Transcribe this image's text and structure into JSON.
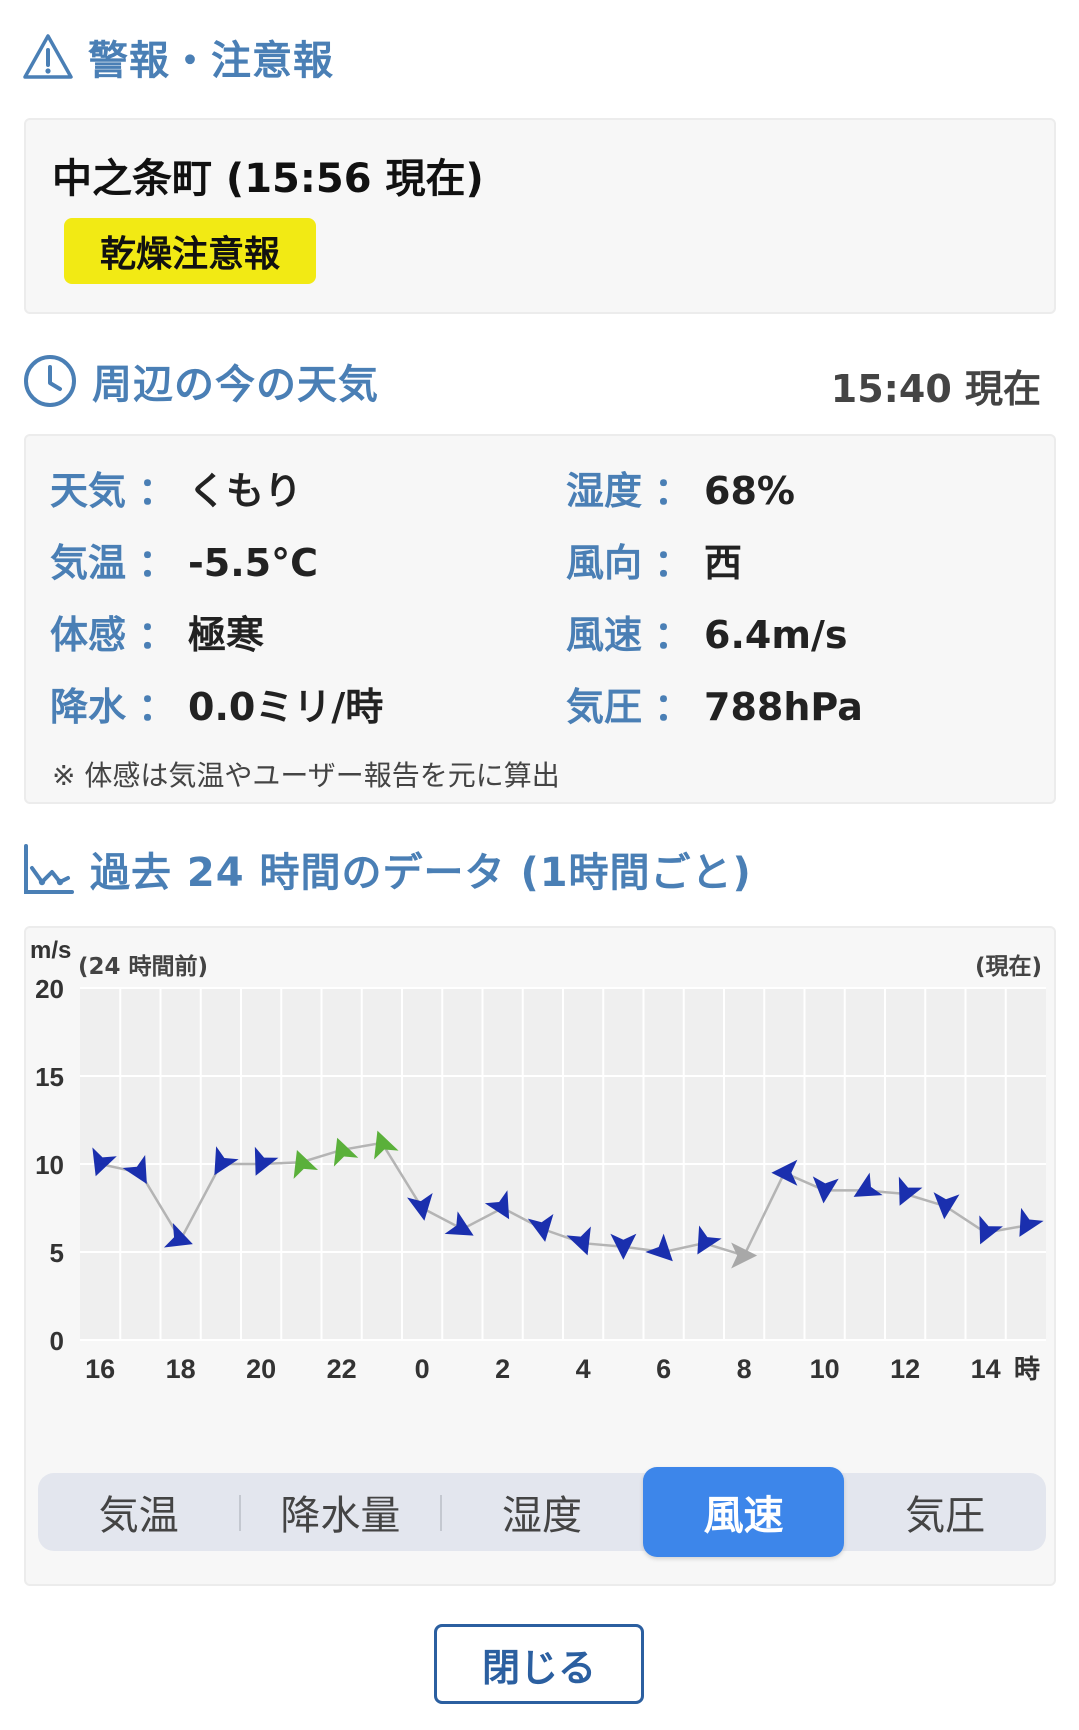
{
  "warning": {
    "section_title": "警報・注意報",
    "town": "中之条町 (15:56 現在)",
    "badge": "乾燥注意報"
  },
  "current": {
    "section_title": "周辺の今の天気",
    "time": "15:40 現在",
    "items": [
      {
        "label": "天気",
        "value": "くもり"
      },
      {
        "label": "湿度",
        "value": "68%"
      },
      {
        "label": "気温",
        "value": "-5.5°C"
      },
      {
        "label": "風向",
        "value": "西"
      },
      {
        "label": "体感",
        "value": "極寒"
      },
      {
        "label": "風速",
        "value": "6.4m/s"
      },
      {
        "label": "降水",
        "value": "0.0ミリ/時"
      },
      {
        "label": "気圧",
        "value": "788hPa"
      }
    ],
    "separator": "：",
    "note": "※ 体感は気温やユーザー報告を元に算出"
  },
  "history": {
    "section_title": "過去 24 時間のデータ (1時間ごと)",
    "tabs": [
      "気温",
      "降水量",
      "湿度",
      "風速",
      "気圧"
    ],
    "active_tab": "風速"
  },
  "chart_data": {
    "type": "line",
    "unit": "m/s",
    "left_note": "(24 時間前)",
    "right_note": "(現在)",
    "ylim": [
      0,
      20
    ],
    "y_ticks": [
      "0",
      "5",
      "10",
      "15",
      "20"
    ],
    "x_tick_labels": [
      "16",
      "18",
      "20",
      "22",
      "0",
      "2",
      "4",
      "6",
      "8",
      "10",
      "12",
      "14"
    ],
    "x_unit": "時",
    "x": [
      "16",
      "17",
      "18",
      "19",
      "20",
      "21",
      "22",
      "23",
      "0",
      "1",
      "2",
      "3",
      "4",
      "5",
      "6",
      "7",
      "8",
      "9",
      "10",
      "11",
      "12",
      "13",
      "14",
      "15"
    ],
    "values": [
      10,
      9.5,
      5.7,
      10,
      10,
      10.1,
      10.8,
      11.2,
      7.5,
      6.3,
      7.5,
      6.3,
      5.5,
      5.3,
      5.0,
      5.5,
      4.8,
      9.5,
      8.5,
      8.5,
      8.3,
      7.6,
      6.1,
      6.5
    ],
    "directions_deg": [
      110,
      60,
      20,
      120,
      115,
      250,
      250,
      250,
      80,
      30,
      60,
      80,
      70,
      90,
      45,
      120,
      0,
      180,
      95,
      150,
      115,
      95,
      115,
      120
    ],
    "point_colors": [
      "#1a2fae",
      "#1a2fae",
      "#1a2fae",
      "#1a2fae",
      "#1a2fae",
      "#5ab03a",
      "#5ab03a",
      "#5ab03a",
      "#1a2fae",
      "#1a2fae",
      "#1a2fae",
      "#1a2fae",
      "#1a2fae",
      "#1a2fae",
      "#1a2fae",
      "#1a2fae",
      "#a8a8a8",
      "#1a2fae",
      "#1a2fae",
      "#1a2fae",
      "#1a2fae",
      "#1a2fae",
      "#1a2fae",
      "#1a2fae"
    ],
    "grid": true
  },
  "close_label": "閉じる",
  "colors": {
    "accent": "#4a7fb5",
    "tab_active": "#3d86ea",
    "badge": "#f2ea14"
  }
}
